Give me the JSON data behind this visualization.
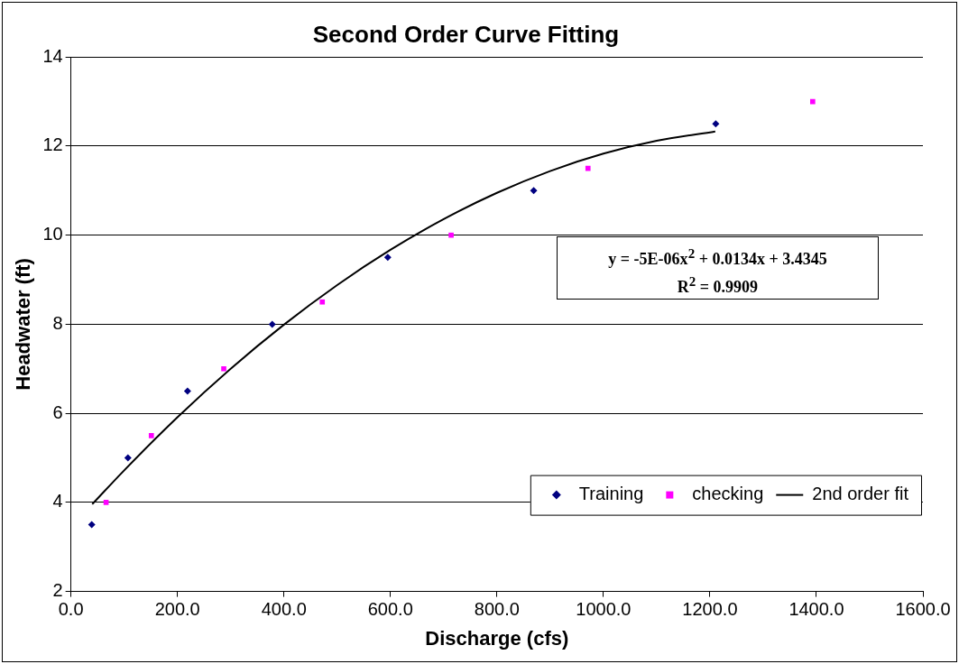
{
  "chart_data": {
    "type": "scatter",
    "title": "Second Order Curve Fitting",
    "xlabel": "Discharge (cfs)",
    "ylabel": "Headwater (ft)",
    "xlim": [
      0,
      1600
    ],
    "xticks": [
      {
        "value": 0,
        "label": "0.0"
      },
      {
        "value": 200,
        "label": "200.0"
      },
      {
        "value": 400,
        "label": "400.0"
      },
      {
        "value": 600,
        "label": "600.0"
      },
      {
        "value": 800,
        "label": "800.0"
      },
      {
        "value": 1000,
        "label": "1000.0"
      },
      {
        "value": 1200,
        "label": "1200.0"
      },
      {
        "value": 1400,
        "label": "1400.0"
      },
      {
        "value": 1600,
        "label": "1600.0"
      }
    ],
    "ylim": [
      2,
      14
    ],
    "yticks": [
      2,
      4,
      6,
      8,
      10,
      12,
      14
    ],
    "grid": "y",
    "legend": "bottom right",
    "series": [
      {
        "name": "Training",
        "type": "scatter",
        "color": "#000080",
        "marker": "diamond",
        "x": [
          39,
          107,
          219,
          378,
          595,
          869,
          1211
        ],
        "values": [
          3.5,
          5.0,
          6.5,
          8.0,
          9.5,
          11.0,
          12.5
        ]
      },
      {
        "name": "checking",
        "type": "scatter",
        "color": "#ff00ff",
        "marker": "square",
        "x": [
          66,
          151,
          287,
          472,
          714,
          971,
          1393
        ],
        "values": [
          4.0,
          5.5,
          7.0,
          8.5,
          10.0,
          11.5,
          13.0
        ]
      },
      {
        "name": "2nd order fit",
        "type": "line",
        "color": "#000000",
        "marker": "none",
        "line_style": "solid",
        "x": [
          40,
          100,
          200,
          300,
          400,
          500,
          600,
          700,
          800,
          900,
          1000,
          1100,
          1210
        ],
        "values": [
          3.96,
          4.72,
          5.91,
          7.0,
          7.99,
          8.88,
          9.67,
          10.36,
          10.95,
          11.44,
          11.83,
          12.12,
          12.33
        ]
      }
    ],
    "annotations": [
      "y = -5E-06x$^{2}$ + 0.0134x + 3.4345",
      "R$^{2}$ = 0.9909"
    ]
  }
}
